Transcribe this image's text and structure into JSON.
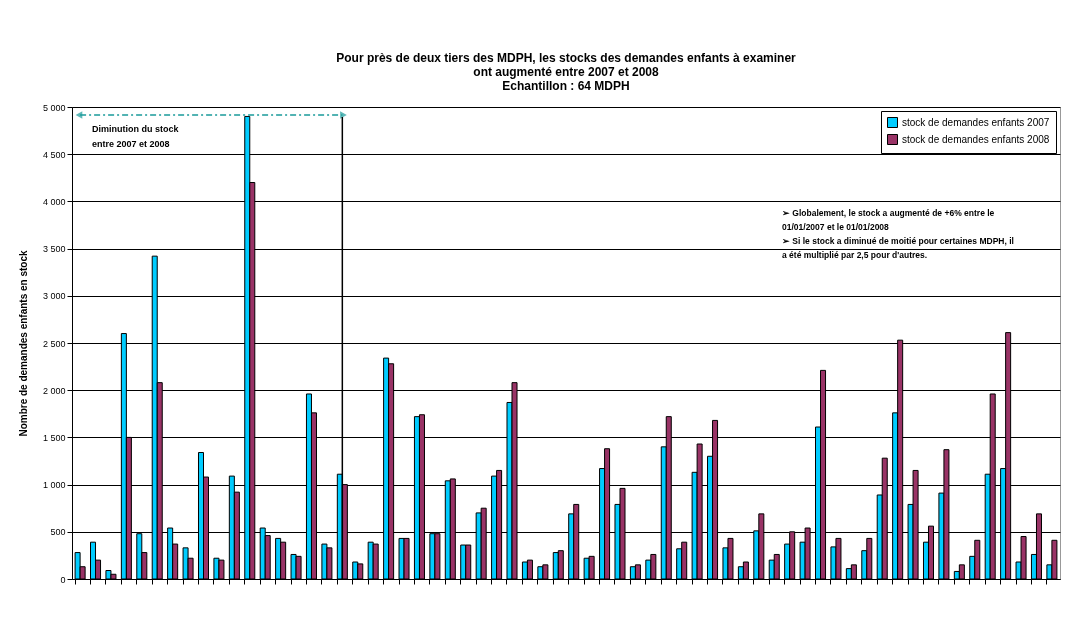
{
  "chart_data": {
    "type": "bar",
    "title": "Pour près de deux tiers des MDPH, les stocks des demandes enfants à examiner\nont augmenté entre 2007 et 2008\nEchantillon : 64 MDPH",
    "ylabel": "Nombre de demandes enfants en stock",
    "categories": [
      null,
      null,
      null,
      null,
      null,
      null,
      null,
      null,
      null,
      null,
      null,
      null,
      null,
      null,
      null,
      null,
      null,
      null,
      null,
      null,
      null,
      null,
      null,
      null,
      null,
      null,
      null,
      null,
      null,
      null,
      null,
      null,
      null,
      null,
      null,
      null,
      null,
      null,
      null,
      null,
      null,
      null,
      null,
      null,
      null,
      null,
      null,
      null,
      null,
      null,
      null,
      null,
      null,
      null,
      null,
      null,
      null,
      null,
      null,
      null,
      null,
      null,
      null,
      null
    ],
    "series": [
      {
        "name": "stock de demandes enfants 2007",
        "color": "#00ccff",
        "values": [
          280,
          390,
          90,
          2600,
          480,
          3420,
          540,
          330,
          1340,
          220,
          1090,
          4900,
          540,
          430,
          260,
          1960,
          370,
          1110,
          180,
          390,
          2340,
          430,
          1720,
          480,
          1040,
          360,
          700,
          1090,
          1870,
          180,
          130,
          280,
          690,
          220,
          1170,
          790,
          130,
          200,
          1400,
          320,
          1130,
          1300,
          330,
          130,
          510,
          200,
          370,
          390,
          1610,
          340,
          110,
          300,
          890,
          1760,
          790,
          390,
          910,
          80,
          240,
          1110,
          1170,
          180,
          260,
          150
        ]
      },
      {
        "name": "stock de demandes enfants 2008",
        "color": "#993366",
        "values": [
          130,
          200,
          50,
          1500,
          280,
          2080,
          370,
          220,
          1080,
          200,
          920,
          4200,
          460,
          390,
          240,
          1760,
          330,
          1000,
          160,
          370,
          2280,
          430,
          1740,
          480,
          1060,
          360,
          750,
          1150,
          2080,
          200,
          150,
          300,
          790,
          240,
          1380,
          960,
          150,
          260,
          1720,
          390,
          1430,
          1680,
          430,
          180,
          690,
          260,
          500,
          540,
          2210,
          430,
          150,
          430,
          1280,
          2530,
          1150,
          560,
          1370,
          150,
          410,
          1960,
          2610,
          450,
          690,
          410
        ]
      }
    ],
    "ylim": [
      0,
      5000
    ],
    "yticks": [
      0,
      500,
      {
        "value": 1000,
        "label": "1 000"
      },
      {
        "value": 1500,
        "label": "1 500"
      },
      {
        "value": 2000,
        "label": "2 000"
      },
      {
        "value": 2500,
        "label": "2 500"
      },
      {
        "value": 3000,
        "label": "3 000"
      },
      {
        "value": 3500,
        "label": "3 500"
      },
      {
        "value": 4000,
        "label": "4 000"
      },
      {
        "value": 4500,
        "label": "4 500"
      },
      {
        "value": 5000,
        "label": "5 000"
      }
    ],
    "annotations": [
      "Diminution du stock\nentre 2007 et 2008",
      "➢ Globalement, le stock a augmenté de +6% entre le 01/01/2007 et le 01/01/2008\n➢ Si le stock a diminué de moitié pour certaines MDPH, il a été multiplié par 2,5 pour d'autres."
    ],
    "grid": "y",
    "legend": "top right",
    "tick_labels": "y"
  }
}
